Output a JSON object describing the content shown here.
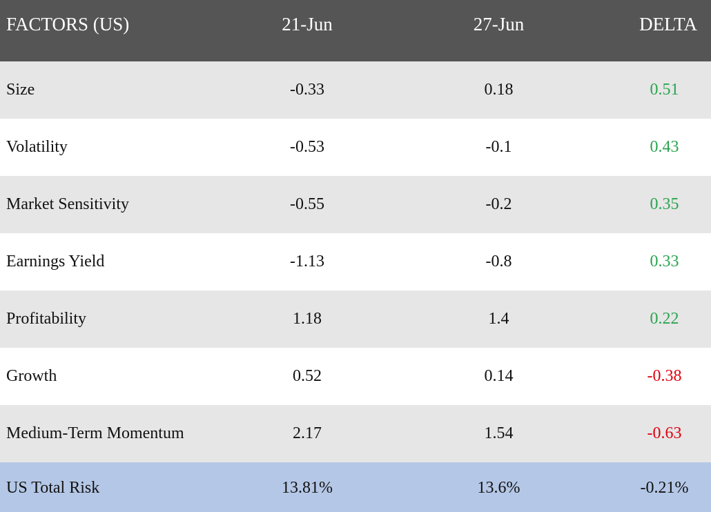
{
  "header": {
    "factor": "FACTORS (US)",
    "date1": "21-Jun",
    "date2": "27-Jun",
    "delta": "DELTA"
  },
  "rows": [
    {
      "factor": "Size",
      "v1": "-0.33",
      "v2": "0.18",
      "delta": "0.51",
      "sign": "pos"
    },
    {
      "factor": "Volatility",
      "v1": "-0.53",
      "v2": "-0.1",
      "delta": "0.43",
      "sign": "pos"
    },
    {
      "factor": "Market Sensitivity",
      "v1": "-0.55",
      "v2": "-0.2",
      "delta": "0.35",
      "sign": "pos"
    },
    {
      "factor": "Earnings Yield",
      "v1": "-1.13",
      "v2": "-0.8",
      "delta": "0.33",
      "sign": "pos"
    },
    {
      "factor": "Profitability",
      "v1": "1.18",
      "v2": "1.4",
      "delta": "0.22",
      "sign": "pos"
    },
    {
      "factor": "Growth",
      "v1": "0.52",
      "v2": "0.14",
      "delta": "-0.38",
      "sign": "neg"
    },
    {
      "factor": "Medium-Term Momentum",
      "v1": "2.17",
      "v2": "1.54",
      "delta": "-0.63",
      "sign": "neg"
    }
  ],
  "total": {
    "factor": "US Total Risk",
    "v1": "13.81%",
    "v2": "13.6%",
    "delta": "-0.21%"
  },
  "colors": {
    "header_bg": "#555555",
    "shade_bg": "#e6e6e6",
    "total_bg": "#b4c7e6",
    "positive": "#2aa44f",
    "negative": "#e0000f"
  }
}
